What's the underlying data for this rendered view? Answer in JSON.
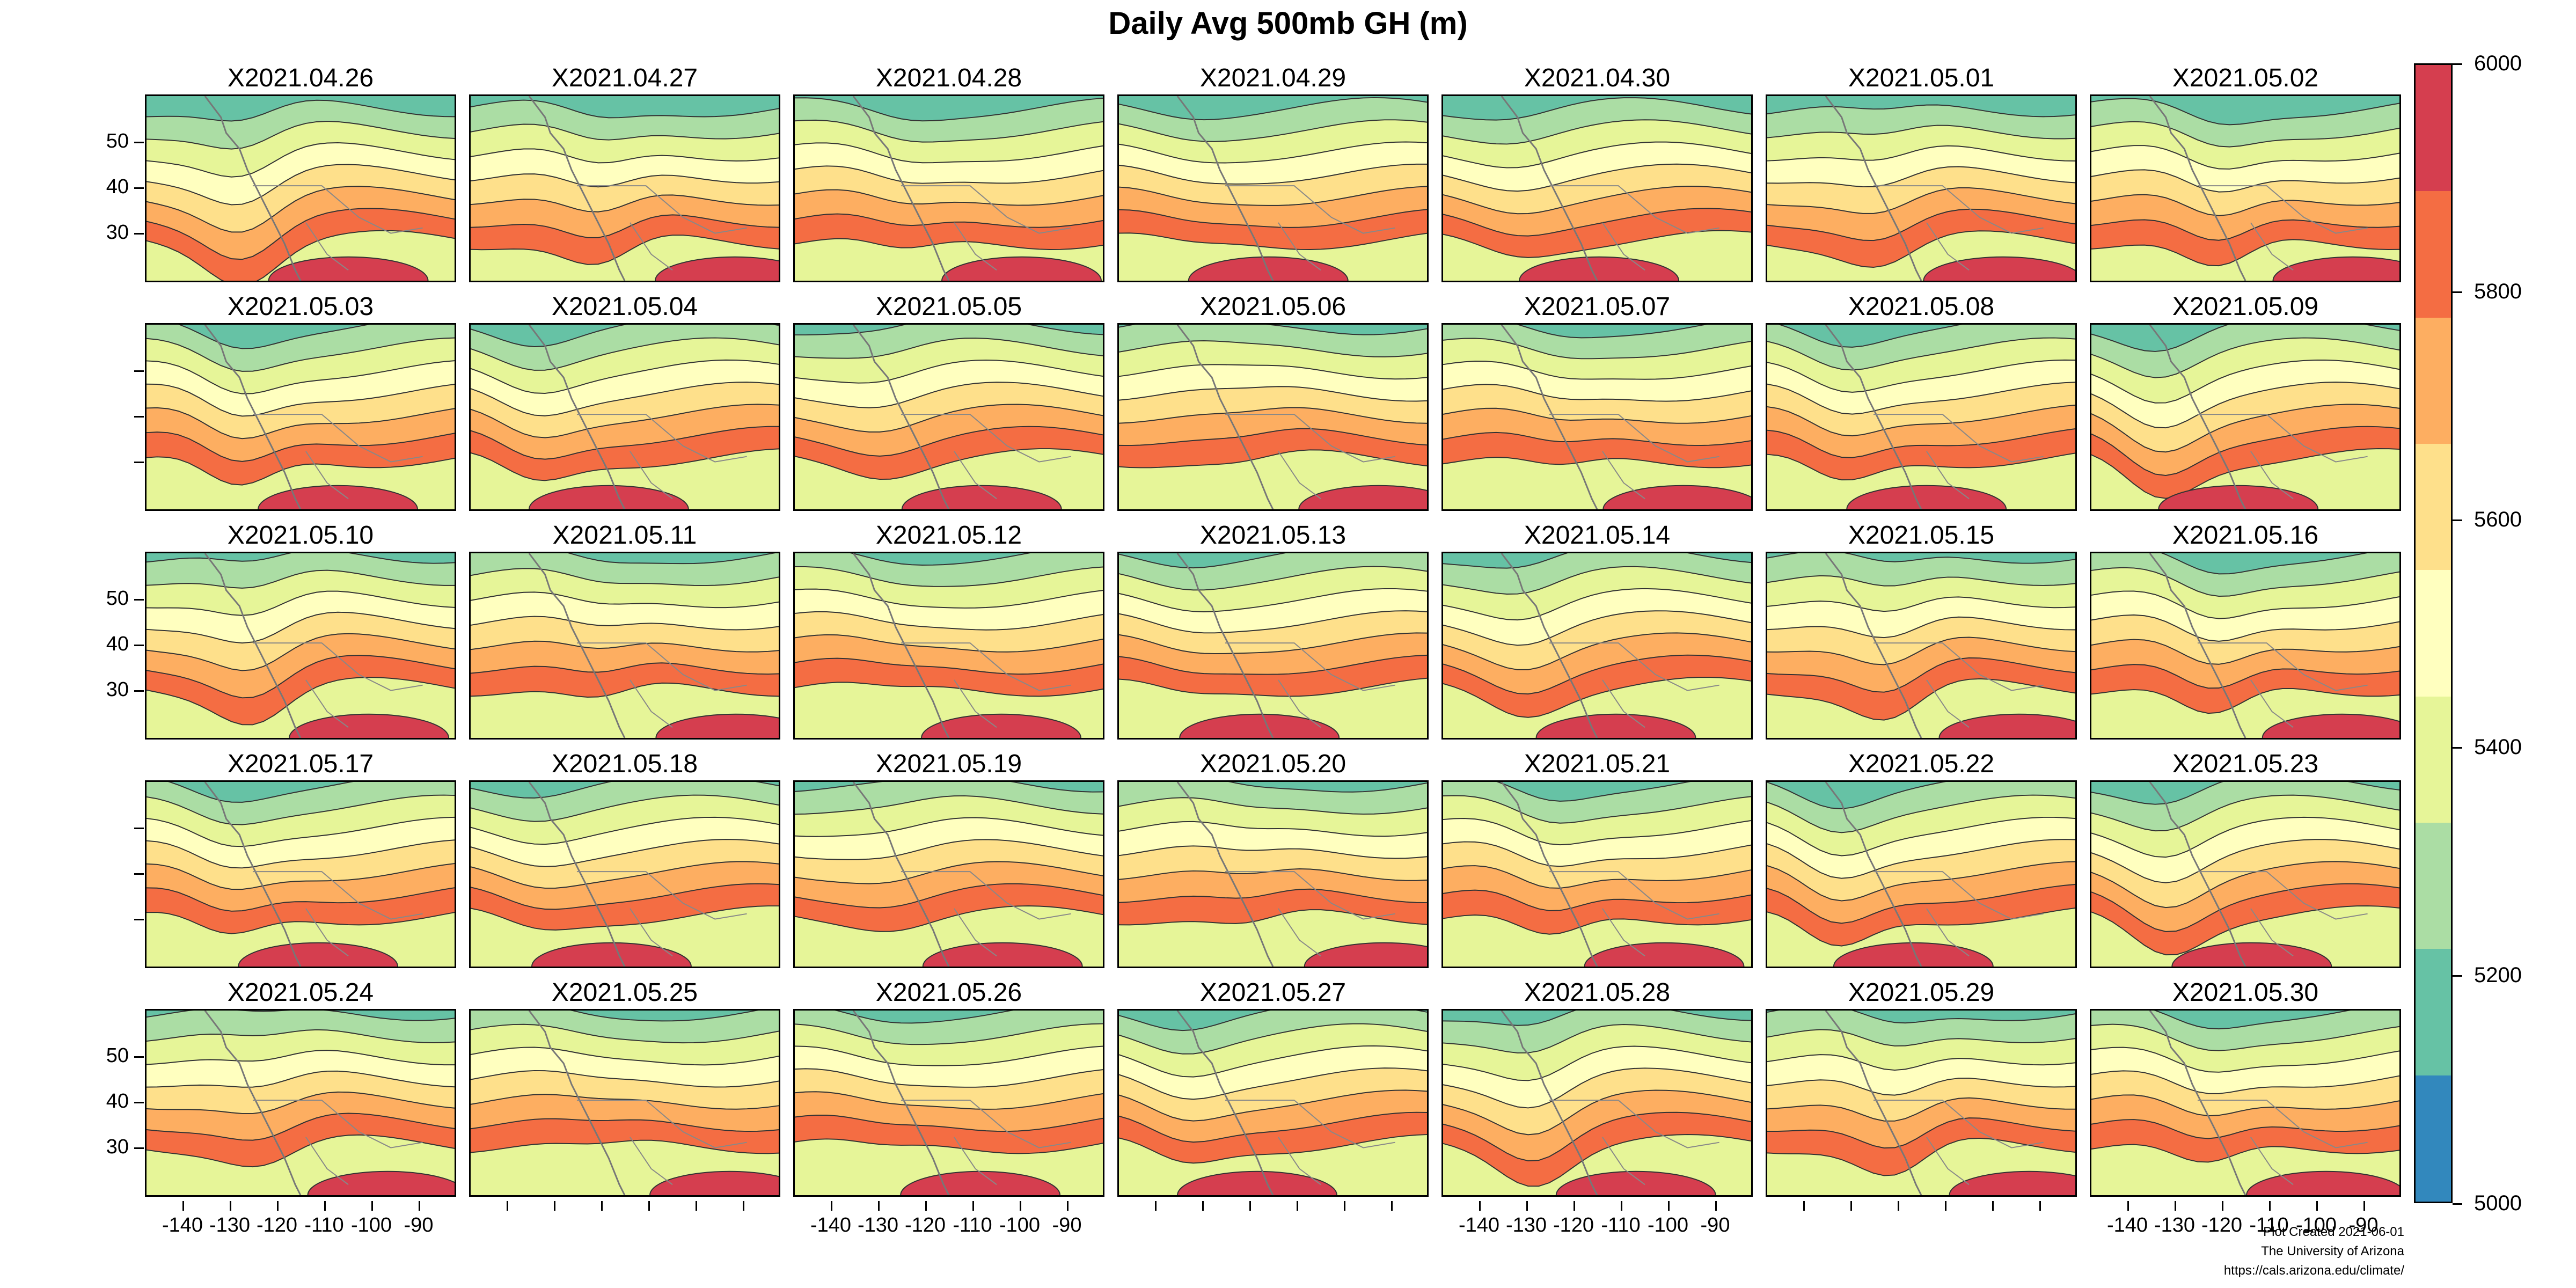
{
  "title": "Daily Avg 500mb GH (m)",
  "panels": [
    "X2021.04.26",
    "X2021.04.27",
    "X2021.04.28",
    "X2021.04.29",
    "X2021.04.30",
    "X2021.05.01",
    "X2021.05.02",
    "X2021.05.03",
    "X2021.05.04",
    "X2021.05.05",
    "X2021.05.06",
    "X2021.05.07",
    "X2021.05.08",
    "X2021.05.09",
    "X2021.05.10",
    "X2021.05.11",
    "X2021.05.12",
    "X2021.05.13",
    "X2021.05.14",
    "X2021.05.15",
    "X2021.05.16",
    "X2021.05.17",
    "X2021.05.18",
    "X2021.05.19",
    "X2021.05.20",
    "X2021.05.21",
    "X2021.05.22",
    "X2021.05.23",
    "X2021.05.24",
    "X2021.05.25",
    "X2021.05.26",
    "X2021.05.27",
    "X2021.05.28",
    "X2021.05.29",
    "X2021.05.30"
  ],
  "axes": {
    "y_ticks": [
      "50",
      "40",
      "30"
    ],
    "x_ticks": [
      "-140",
      "-130",
      "-120",
      "-110",
      "-100",
      "-90"
    ]
  },
  "colorbar": {
    "labels": [
      "6000",
      "5800",
      "5600",
      "5400",
      "5200",
      "5000"
    ],
    "colors": [
      "#d53e4f",
      "#f46d43",
      "#fdae61",
      "#fee08b",
      "#ffffbf",
      "#e6f598",
      "#abdda4",
      "#66c2a5",
      "#3288bd"
    ]
  },
  "credit": {
    "line1": "Plot Created 2021-06-01",
    "line2": "The University of Arizona",
    "line3": "https://cals.arizona.edu/climate/"
  }
}
